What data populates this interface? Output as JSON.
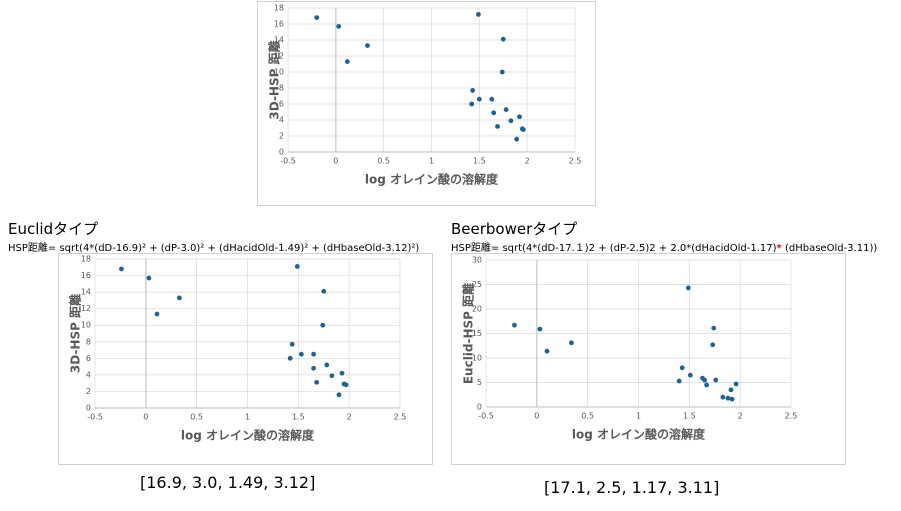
{
  "chart_data": [
    {
      "type": "scatter",
      "x_label": "log オレイン酸の溶解度",
      "y_label": "3D-HSP 距離",
      "color": "#1f6391",
      "grid": true,
      "x": [
        -0.2,
        0.03,
        0.12,
        0.33,
        1.49,
        1.75,
        1.74,
        1.43,
        1.42,
        1.5,
        1.63,
        1.65,
        1.69,
        1.78,
        1.83,
        1.92,
        1.95,
        1.96,
        1.89
      ],
      "y": [
        16.8,
        15.7,
        11.3,
        13.3,
        17.2,
        14.1,
        10.0,
        7.7,
        6.0,
        6.6,
        6.6,
        4.9,
        3.2,
        5.3,
        3.9,
        4.4,
        2.9,
        2.8,
        1.6
      ],
      "xlim": [
        -0.5,
        2.5
      ],
      "xticks": [
        -0.5,
        0,
        0.5,
        1,
        1.5,
        2,
        2.5
      ],
      "ylim": [
        0,
        18
      ],
      "yticks": [
        0,
        2,
        4,
        6,
        8,
        10,
        12,
        14,
        16,
        18
      ]
    },
    {
      "type": "scatter",
      "x_label": "log オレイン酸の溶解度",
      "y_label": "3D-HSP 距離",
      "color": "#1f6391",
      "grid": true,
      "x": [
        -0.24,
        0.03,
        0.11,
        0.33,
        1.49,
        1.75,
        1.74,
        1.44,
        1.42,
        1.53,
        1.65,
        1.65,
        1.68,
        1.78,
        1.83,
        1.93,
        1.95,
        1.97,
        1.9
      ],
      "y": [
        16.8,
        15.7,
        11.35,
        13.3,
        17.1,
        14.1,
        10.0,
        7.7,
        6.0,
        6.5,
        6.5,
        4.8,
        3.1,
        5.2,
        3.9,
        4.2,
        2.9,
        2.8,
        1.6
      ],
      "xlim": [
        -0.5,
        2.5
      ],
      "xticks": [
        -0.5,
        0,
        0.5,
        1,
        1.5,
        2,
        2.5
      ],
      "ylim": [
        0,
        18
      ],
      "yticks": [
        0,
        2,
        4,
        6,
        8,
        10,
        12,
        14,
        16,
        18
      ]
    },
    {
      "type": "scatter",
      "x_label": "log オレイン酸の溶解度",
      "y_label": "Euclid-HSP 距離",
      "color": "#1f6391",
      "grid": true,
      "x": [
        -0.22,
        0.03,
        0.1,
        0.34,
        1.49,
        1.74,
        1.73,
        1.43,
        1.4,
        1.51,
        1.63,
        1.65,
        1.67,
        1.76,
        1.83,
        1.91,
        1.96,
        1.92,
        1.88
      ],
      "y": [
        16.7,
        15.9,
        11.4,
        13.1,
        24.3,
        16.1,
        12.7,
        8.0,
        5.3,
        6.5,
        5.9,
        5.5,
        4.5,
        5.5,
        2.0,
        3.5,
        4.7,
        1.6,
        1.8
      ],
      "xlim": [
        -0.5,
        2.5
      ],
      "xticks": [
        -0.5,
        0,
        0.5,
        1,
        1.5,
        2,
        2.5
      ],
      "ylim": [
        0,
        30
      ],
      "yticks": [
        0,
        5,
        10,
        15,
        20,
        25,
        30
      ]
    }
  ],
  "sections": [
    {
      "title": "Euclidタイプ",
      "formula": [
        "HSP距離= sqrt(4*(dD-16.9)² + (dP-3.0)² + (dHacidOld-1.49)² + (dHbaseOld-3.12)²)"
      ],
      "params": "[16.9, 3.0, 1.49, 3.12]"
    },
    {
      "title": "Beerbowerタイプ",
      "formula": [
        "HSP距離= sqrt(4*(dD-17.１)2 + (dP-2.5)2 + 2.0*(dHacidOld-1.17)",
        "*",
        " (dHbaseOld-3.11))"
      ],
      "params": "[17.1, 2.5, 1.17, 3.11]"
    }
  ]
}
